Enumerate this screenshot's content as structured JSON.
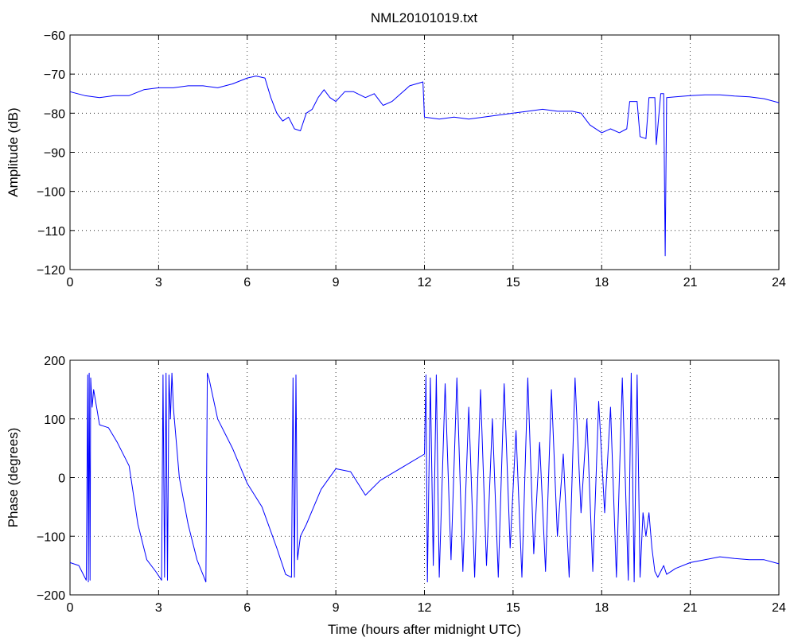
{
  "title": "NML20101019.txt",
  "colors": {
    "series": "#0000ff",
    "axes": "#000000",
    "background": "#ffffff"
  },
  "chart_data": [
    {
      "type": "line",
      "title": "NML20101019.txt",
      "xlabel": "",
      "ylabel": "Amplitude (dB)",
      "xlim": [
        0,
        24
      ],
      "ylim": [
        -120,
        -60
      ],
      "xticks": [
        0,
        3,
        6,
        9,
        12,
        15,
        18,
        21,
        24
      ],
      "yticks": [
        -120,
        -110,
        -100,
        -90,
        -80,
        -70,
        -60
      ],
      "grid": true,
      "series": [
        {
          "x": [
            0,
            0.5,
            1,
            1.5,
            2,
            2.5,
            3,
            3.5,
            4,
            4.5,
            5,
            5.5,
            6,
            6.3,
            6.6,
            6.8,
            7.0,
            7.2,
            7.4,
            7.6,
            7.8,
            8.0,
            8.2,
            8.4,
            8.6,
            8.8,
            9.0,
            9.3,
            9.6,
            10.0,
            10.3,
            10.6,
            10.9,
            11.2,
            11.5,
            11.95,
            12.0,
            12.5,
            13,
            13.5,
            14,
            14.5,
            15,
            15.5,
            16,
            16.5,
            17,
            17.3,
            17.6,
            18.0,
            18.3,
            18.6,
            18.85,
            18.95,
            19.2,
            19.3,
            19.5,
            19.6,
            19.8,
            19.85,
            20.0,
            20.1,
            20.15,
            20.2,
            20.5,
            21,
            21.5,
            22,
            22.5,
            23,
            23.5,
            24
          ],
          "y": [
            -74.5,
            -75.5,
            -76,
            -75.5,
            -75.5,
            -74,
            -73.5,
            -73.5,
            -73,
            -73,
            -73.5,
            -72.5,
            -71,
            -70.5,
            -71,
            -76,
            -80,
            -82,
            -81,
            -84,
            -84.5,
            -80,
            -79,
            -76,
            -74,
            -76,
            -77,
            -74.5,
            -74.5,
            -76,
            -75,
            -78,
            -77,
            -75,
            -73,
            -72,
            -81,
            -81.5,
            -81,
            -81.5,
            -81,
            -80.5,
            -80,
            -79.5,
            -79,
            -79.5,
            -79.5,
            -80,
            -83,
            -85,
            -84,
            -85,
            -84,
            -77,
            -77,
            -86,
            -86.5,
            -76,
            -76,
            -88,
            -75,
            -75,
            -116.5,
            -76,
            -75.8,
            -75.5,
            -75.3,
            -75.3,
            -75.6,
            -75.8,
            -76.3,
            -77.3
          ]
        }
      ]
    },
    {
      "type": "line",
      "title": "",
      "xlabel": "Time (hours after midnight UTC)",
      "ylabel": "Phase (degrees)",
      "xlim": [
        0,
        24
      ],
      "ylim": [
        -200,
        200
      ],
      "xticks": [
        0,
        3,
        6,
        9,
        12,
        15,
        18,
        21,
        24
      ],
      "yticks": [
        -200,
        -100,
        0,
        100,
        200
      ],
      "grid": true,
      "series": [
        {
          "x": [
            0,
            0.3,
            0.55,
            0.6,
            0.62,
            0.65,
            0.68,
            0.7,
            0.75,
            0.8,
            1.0,
            1.3,
            1.6,
            2.0,
            2.3,
            2.6,
            2.9,
            3.1,
            3.15,
            3.2,
            3.25,
            3.3,
            3.35,
            3.4,
            3.45,
            3.5,
            3.7,
            4.0,
            4.3,
            4.6,
            4.65,
            4.7,
            5.0,
            5.5,
            6.0,
            6.5,
            7.0,
            7.3,
            7.5,
            7.55,
            7.6,
            7.65,
            7.7,
            7.8,
            8.0,
            8.5,
            9.0,
            9.5,
            10.0,
            10.5,
            11.0,
            11.5,
            12.0,
            12.05,
            12.1,
            12.2,
            12.3,
            12.4,
            12.5,
            12.7,
            12.9,
            13.1,
            13.3,
            13.5,
            13.7,
            13.9,
            14.1,
            14.3,
            14.5,
            14.7,
            14.9,
            15.1,
            15.3,
            15.5,
            15.7,
            15.9,
            16.1,
            16.3,
            16.5,
            16.7,
            16.9,
            17.1,
            17.3,
            17.5,
            17.7,
            17.9,
            18.1,
            18.3,
            18.5,
            18.7,
            18.9,
            19.0,
            19.1,
            19.2,
            19.3,
            19.4,
            19.5,
            19.6,
            19.7,
            19.8,
            19.9,
            20.0,
            20.1,
            20.2,
            20.5,
            21.0,
            21.5,
            22.0,
            22.5,
            23.0,
            23.5,
            24.0
          ],
          "y": [
            -145,
            -150,
            -175,
            175,
            -178,
            178,
            -175,
            170,
            120,
            150,
            90,
            85,
            60,
            20,
            -80,
            -140,
            -160,
            -175,
            175,
            -170,
            178,
            -175,
            175,
            100,
            178,
            120,
            0,
            -80,
            -140,
            -178,
            178,
            170,
            100,
            50,
            -10,
            -50,
            -120,
            -165,
            -170,
            170,
            -170,
            175,
            -140,
            -100,
            -80,
            -20,
            15,
            10,
            -30,
            -5,
            10,
            25,
            40,
            175,
            -178,
            170,
            -150,
            175,
            -170,
            160,
            -140,
            170,
            -160,
            120,
            -170,
            150,
            -150,
            100,
            -170,
            160,
            -120,
            80,
            -170,
            170,
            -130,
            60,
            -160,
            150,
            -100,
            40,
            -170,
            170,
            -60,
            100,
            -160,
            130,
            -60,
            120,
            -170,
            170,
            -175,
            178,
            -178,
            175,
            -170,
            -60,
            -100,
            -60,
            -120,
            -160,
            -170,
            -160,
            -150,
            -165,
            -155,
            -145,
            -140,
            -135,
            -138,
            -140,
            -140,
            -147
          ]
        }
      ]
    }
  ]
}
